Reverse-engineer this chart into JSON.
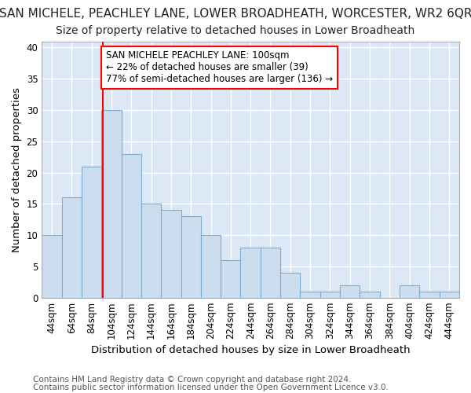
{
  "title": "SAN MICHELE, PEACHLEY LANE, LOWER BROADHEATH, WORCESTER, WR2 6QR",
  "subtitle": "Size of property relative to detached houses in Lower Broadheath",
  "xlabel": "Distribution of detached houses by size in Lower Broadheath",
  "ylabel": "Number of detached properties",
  "footnote1": "Contains HM Land Registry data © Crown copyright and database right 2024.",
  "footnote2": "Contains public sector information licensed under the Open Government Licence v3.0.",
  "bins": [
    "44sqm",
    "64sqm",
    "84sqm",
    "104sqm",
    "124sqm",
    "144sqm",
    "164sqm",
    "184sqm",
    "204sqm",
    "224sqm",
    "244sqm",
    "264sqm",
    "284sqm",
    "304sqm",
    "324sqm",
    "344sqm",
    "364sqm",
    "384sqm",
    "404sqm",
    "424sqm",
    "444sqm"
  ],
  "values": [
    10,
    16,
    21,
    30,
    23,
    15,
    14,
    13,
    10,
    6,
    8,
    8,
    4,
    1,
    1,
    2,
    1,
    0,
    2,
    1,
    1
  ],
  "bar_color": "#ccddf0",
  "bar_edge_color": "#7aadd0",
  "redline_label": "SAN MICHELE PEACHLEY LANE: 100sqm",
  "annotation_line1": "← 22% of detached houses are smaller (39)",
  "annotation_line2": "77% of semi-detached houses are larger (136) →",
  "ylim": [
    0,
    41
  ],
  "yticks": [
    0,
    5,
    10,
    15,
    20,
    25,
    30,
    35,
    40
  ],
  "plot_bg_color": "#dce8f5",
  "fig_bg_color": "#ffffff",
  "grid_color": "#ffffff",
  "title_fontsize": 11,
  "subtitle_fontsize": 10,
  "axis_label_fontsize": 9.5,
  "tick_fontsize": 8.5,
  "footnote_fontsize": 7.5
}
